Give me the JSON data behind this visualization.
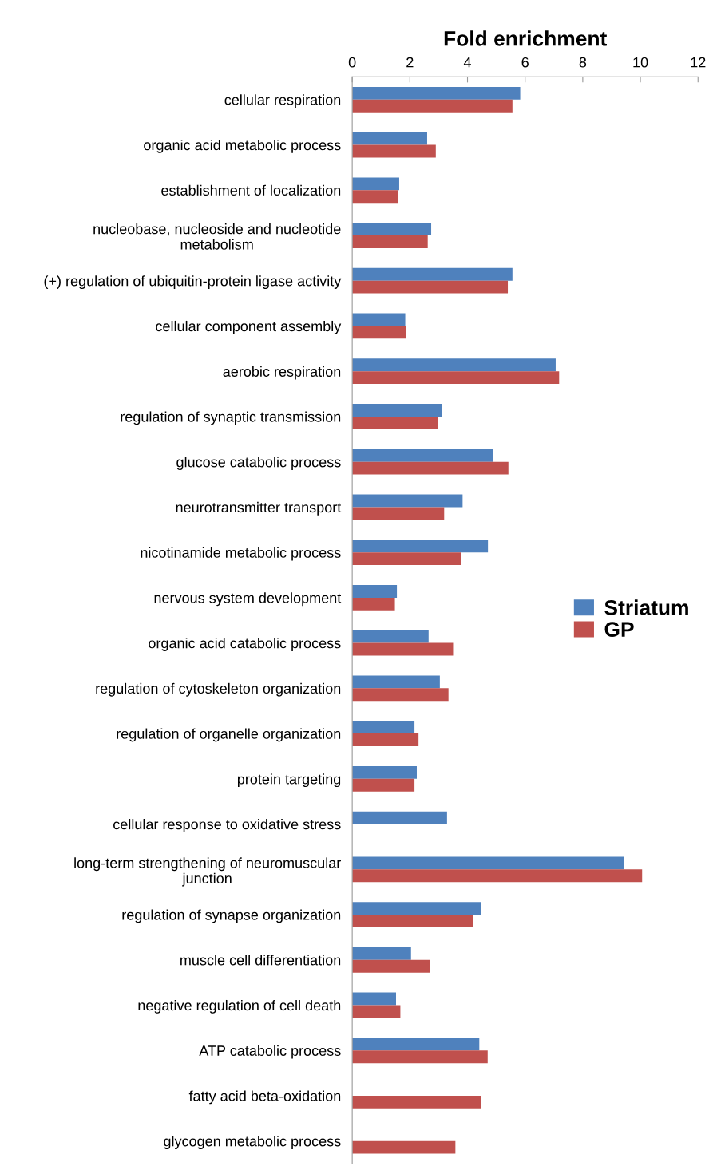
{
  "chart_data": {
    "type": "bar",
    "orientation": "horizontal",
    "xlabel": "Fold enrichment",
    "categories": [
      "cellular respiration",
      "organic acid metabolic process",
      "establishment of localization",
      "nucleobase, nucleoside and nucleotide\nmetabolism",
      "(+) regulation of ubiquitin-protein ligase activity",
      "cellular component assembly",
      "aerobic respiration",
      "regulation of synaptic transmission",
      "glucose catabolic process",
      "neurotransmitter transport",
      "nicotinamide metabolic process",
      "nervous system development",
      "organic acid catabolic process",
      "regulation of cytoskeleton organization",
      "regulation of organelle organization",
      "protein targeting",
      "cellular response to oxidative stress",
      "long-term strengthening of neuromuscular\njunction",
      "regulation of synapse organization",
      "muscle cell differentiation",
      "negative regulation of cell death",
      "ATP catabolic process",
      "fatty acid beta-oxidation",
      "glycogen metabolic process"
    ],
    "series": [
      {
        "name": "Striatum",
        "color": "#4f81bd",
        "values": [
          5.83,
          2.6,
          1.63,
          2.74,
          5.56,
          1.84,
          7.06,
          3.11,
          4.88,
          3.83,
          4.71,
          1.55,
          2.65,
          3.04,
          2.16,
          2.24,
          3.29,
          9.43,
          4.48,
          2.04,
          1.52,
          4.41,
          null,
          null
        ]
      },
      {
        "name": "GP",
        "color": "#c0504d",
        "values": [
          5.56,
          2.9,
          1.6,
          2.62,
          5.4,
          1.87,
          7.18,
          2.97,
          5.42,
          3.19,
          3.77,
          1.48,
          3.5,
          3.34,
          2.3,
          2.16,
          null,
          10.06,
          4.19,
          2.7,
          1.67,
          4.7,
          4.48,
          3.58
        ]
      }
    ],
    "xlim": [
      0,
      12
    ],
    "xticks": [
      0,
      2,
      4,
      6,
      8,
      10,
      12
    ],
    "grid": false,
    "legend": "right"
  }
}
